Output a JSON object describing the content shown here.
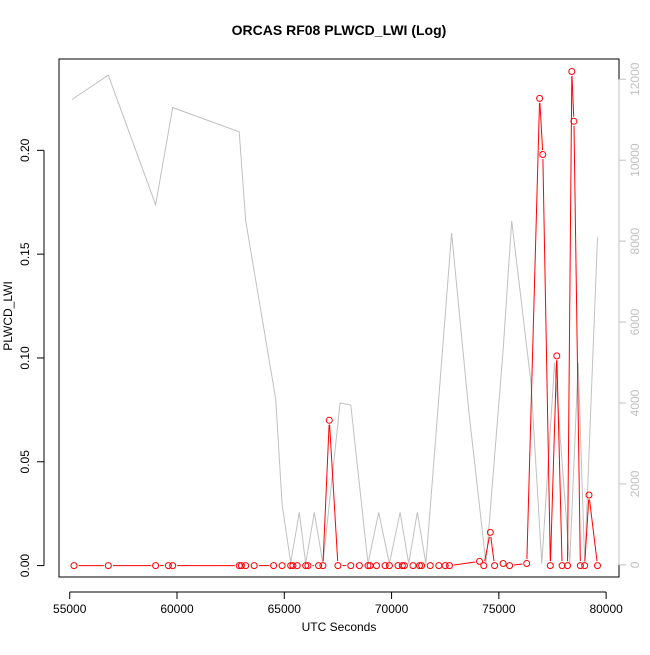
{
  "chart_data": {
    "type": "line",
    "title": "ORCAS RF08 PLWCD_LWI (Log)",
    "xlabel": "UTC Seconds",
    "ylabel": "PLWCD_LWI",
    "xlim": [
      54500,
      80600
    ],
    "ylim": [
      -0.0055,
      0.244
    ],
    "y2lim": [
      -300,
      12500
    ],
    "x_ticks": [
      55000,
      60000,
      65000,
      70000,
      75000,
      80000
    ],
    "y_ticks": [
      0.0,
      0.05,
      0.1,
      0.15,
      0.2
    ],
    "y_tick_labels": [
      "0.00",
      "0.05",
      "0.10",
      "0.15",
      "0.20"
    ],
    "y2_ticks": [
      0,
      2000,
      4000,
      6000,
      8000,
      10000,
      12000
    ],
    "grid": false,
    "legend": "none",
    "series": [
      {
        "axis": "right",
        "color": "#c0c0c0",
        "style": "line",
        "x": [
          55100,
          56800,
          59000,
          59800,
          62900,
          63200,
          64600,
          64900,
          65300,
          65700,
          66000,
          66400,
          66800,
          67600,
          68100,
          68900,
          69400,
          69900,
          70400,
          70800,
          71200,
          71600,
          72800,
          73600,
          74400,
          75200,
          75600,
          76500,
          77000,
          77600,
          78300,
          78700,
          79000,
          79600
        ],
        "values": [
          11500,
          12100,
          8900,
          11300,
          10700,
          8500,
          4100,
          1500,
          50,
          1300,
          30,
          1300,
          30,
          4000,
          3950,
          30,
          1300,
          30,
          1300,
          30,
          1300,
          30,
          8200,
          3800,
          30,
          5300,
          8500,
          4500,
          30,
          5000,
          30,
          5000,
          30,
          8100
        ]
      },
      {
        "axis": "left",
        "color": "#ff0000",
        "style": "line+points",
        "x": [
          55200,
          56800,
          59000,
          59600,
          59800,
          62900,
          63000,
          63200,
          63600,
          64500,
          64900,
          65300,
          65400,
          65600,
          66000,
          66100,
          66600,
          66800,
          67100,
          67500,
          68100,
          68500,
          68900,
          69000,
          69300,
          69700,
          69900,
          70300,
          70500,
          70600,
          71000,
          71300,
          71400,
          71800,
          72200,
          72500,
          72700,
          74100,
          74300,
          74600,
          74800,
          75200,
          75500,
          76300,
          76900,
          77050,
          77400,
          77700,
          77950,
          78200,
          78400,
          78500,
          78800,
          79000,
          79200,
          79600
        ],
        "values": [
          0.0,
          0.0,
          0.0,
          0.0,
          0.0,
          0.0,
          0.0,
          0.0,
          0.0,
          0.0,
          0.0,
          0.0,
          0.0,
          0.0,
          0.0,
          0.0,
          0.0,
          0.0,
          0.07,
          0.0,
          0.0,
          0.0,
          0.0,
          0.0,
          0.0,
          0.0,
          0.0,
          0.0,
          0.0,
          0.0,
          0.0,
          0.0,
          0.0,
          0.0,
          0.0,
          0.0,
          0.0,
          0.002,
          0.0,
          0.016,
          0.0,
          0.001,
          0.0,
          0.001,
          0.225,
          0.198,
          0.0,
          0.101,
          0.0,
          0.0,
          0.238,
          0.214,
          0.0,
          0.0,
          0.034,
          0.0
        ]
      }
    ]
  }
}
